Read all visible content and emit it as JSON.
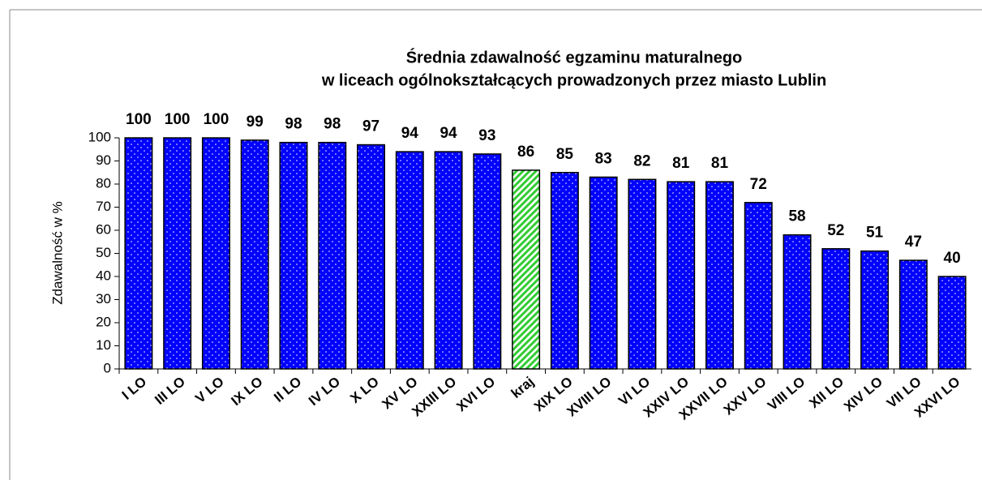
{
  "chart_data": {
    "type": "bar",
    "title": [
      "Średnia zdawalność egzaminu maturalnego",
      "w liceach ogólnokształcących prowadzonych przez miasto Lublin"
    ],
    "y_label": "Zdawalność w %",
    "categories": [
      "I LO",
      "III LO",
      "V LO",
      "IX LO",
      "II LO",
      "IV LO",
      "X LO",
      "XV LO",
      "XXIII LO",
      "XVI LO",
      "kraj",
      "XIX LO",
      "XVIII LO",
      "VI LO",
      "XXIV LO",
      "XXVII LO",
      "XXV LO",
      "VIII LO",
      "XII LO",
      "XIV LO",
      "VII LO",
      "XXVI LO"
    ],
    "values": [
      100,
      100,
      100,
      99,
      98,
      98,
      97,
      94,
      94,
      93,
      86,
      85,
      83,
      82,
      81,
      81,
      72,
      58,
      52,
      51,
      47,
      40
    ],
    "color": "#0000ff",
    "colors": [
      "#0000ff",
      "#0000ff",
      "#0000ff",
      "#0000ff",
      "#0000ff",
      "#0000ff",
      "#0000ff",
      "#0000ff",
      "#0000ff",
      "#0000ff",
      "#33cc33",
      "#0000ff",
      "#0000ff",
      "#0000ff",
      "#0000ff",
      "#0000ff",
      "#0000ff",
      "#0000ff",
      "#0000ff",
      "#0000ff",
      "#0000ff",
      "#0000ff"
    ],
    "ylim": [
      0,
      100
    ],
    "yticks": [
      0,
      10,
      20,
      30,
      40,
      50,
      60,
      70,
      80,
      90,
      100
    ],
    "grid": false
  }
}
